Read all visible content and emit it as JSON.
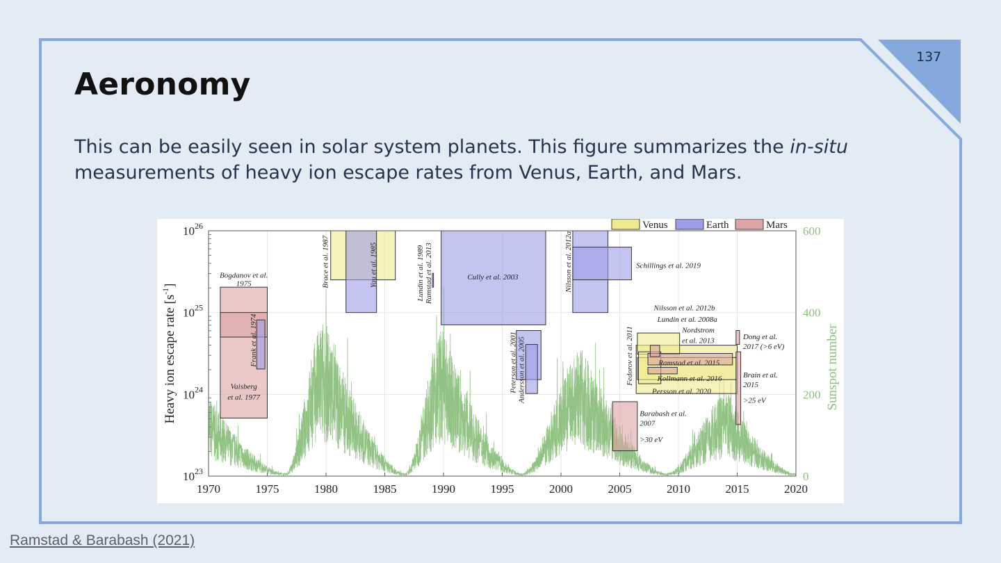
{
  "slide": {
    "page_number": "137",
    "title": "Aeronomy",
    "body_part1": "This can be easily seen in solar system planets. This figure summarizes the ",
    "body_italic": "in-situ",
    "body_part2": " measurements of heavy ion escape rates from Venus, Earth, and Mars.",
    "source_link": "Ramstad & Barabash (2021)",
    "colors": {
      "background": "#e3ebf4",
      "accent": "#85a9dc",
      "text": "#1f2a44"
    }
  },
  "chart_data": {
    "type": "area",
    "title": "",
    "xlabel": "",
    "ylabel": "Heavy ion escape rate [s",
    "ylabel_sup": "-1",
    "ylabel_end": "]",
    "y2label": "Sunspot number",
    "xlim": [
      1970,
      2020
    ],
    "ylim_log10": [
      23,
      26
    ],
    "y2lim": [
      0,
      600
    ],
    "xticks": [
      "1970",
      "1975",
      "1980",
      "1985",
      "1990",
      "1995",
      "2000",
      "2005",
      "2010",
      "2015",
      "2020"
    ],
    "yticks": [
      {
        "base": "10",
        "exp": "23"
      },
      {
        "base": "10",
        "exp": "24"
      },
      {
        "base": "10",
        "exp": "25"
      },
      {
        "base": "10",
        "exp": "26"
      }
    ],
    "y2ticks": [
      "0",
      "200",
      "400",
      "600"
    ],
    "grid": true,
    "legend_position": "top-right",
    "legend": [
      {
        "name": "Venus",
        "color": "#efe98f"
      },
      {
        "name": "Earth",
        "color": "#9d9de8"
      },
      {
        "name": "Mars",
        "color": "#dca4a4"
      }
    ],
    "sunspot_color": "#7fb870",
    "sunspot_cycles": [
      {
        "min": 1964.8,
        "max": 1968.9,
        "peak": 150
      },
      {
        "min": 1976.5,
        "max": 1979.9,
        "peak": 230
      },
      {
        "min": 1986.7,
        "max": 1989.9,
        "peak": 215
      },
      {
        "min": 1996.6,
        "max": 2001.9,
        "peak": 185
      },
      {
        "min": 2008.9,
        "max": 2014.3,
        "peak": 118
      },
      {
        "min": 2019.9,
        "max": 2024.5,
        "peak": 120
      }
    ],
    "measurements": [
      {
        "planet": "Mars",
        "x": [
          1971.0,
          1975.0
        ],
        "log10": [
          23.71,
          25.31
        ]
      },
      {
        "planet": "Mars",
        "x": [
          1971.0,
          1975.0
        ],
        "log10": [
          24.7,
          25.0
        ]
      },
      {
        "planet": "Earth",
        "x": [
          1974.1,
          1974.8
        ],
        "log10": [
          24.31,
          24.91
        ]
      },
      {
        "planet": "Venus",
        "x": [
          1980.4,
          1985.9
        ],
        "log10": [
          25.4,
          26.0
        ]
      },
      {
        "planet": "Earth",
        "x": [
          1981.7,
          1984.3
        ],
        "log10": [
          25.0,
          26.0
        ]
      },
      {
        "planet": "Earth",
        "x": [
          1989.05,
          1989.15
        ],
        "log10": [
          25.31,
          25.48
        ]
      },
      {
        "planet": "Earth",
        "x": [
          1989.8,
          1998.7
        ],
        "log10": [
          24.85,
          26.0
        ]
      },
      {
        "planet": "Earth",
        "x": [
          1996.2,
          1998.3
        ],
        "log10": [
          24.18,
          24.78
        ]
      },
      {
        "planet": "Earth",
        "x": [
          1997.0,
          1998.0
        ],
        "log10": [
          24.01,
          24.61
        ]
      },
      {
        "planet": "Earth",
        "x": [
          2001.0,
          2004.0
        ],
        "log10": [
          25.0,
          26.0
        ]
      },
      {
        "planet": "Earth",
        "x": [
          2001.0,
          2006.0
        ],
        "log10": [
          25.4,
          25.8
        ]
      },
      {
        "planet": "Mars",
        "x": [
          2004.4,
          2006.5
        ],
        "log10": [
          23.31,
          23.91
        ]
      },
      {
        "planet": "Venus",
        "x": [
          2006.4,
          2015.0
        ],
        "log10": [
          24.01,
          24.6
        ]
      },
      {
        "planet": "Venus",
        "x": [
          2006.5,
          2010.1
        ],
        "log10": [
          24.49,
          24.75
        ]
      },
      {
        "planet": "Venus",
        "x": [
          2006.5,
          2015.0
        ],
        "log10": [
          24.18,
          24.45
        ]
      },
      {
        "planet": "Venus",
        "x": [
          2006.6,
          2008.5
        ],
        "log10": [
          24.13,
          24.52
        ]
      },
      {
        "planet": "Mars",
        "x": [
          2007.4,
          2014.6
        ],
        "log10": [
          24.36,
          24.5
        ]
      },
      {
        "planet": "Mars",
        "x": [
          2007.4,
          2009.9
        ],
        "log10": [
          24.25,
          24.33
        ]
      },
      {
        "planet": "Mars",
        "x": [
          2007.6,
          2008.4
        ],
        "log10": [
          24.46,
          24.6
        ]
      },
      {
        "planet": "Mars",
        "x": [
          2014.9,
          2015.2
        ],
        "log10": [
          24.61,
          24.78
        ]
      },
      {
        "planet": "Mars",
        "x": [
          2014.9,
          2015.3
        ],
        "log10": [
          23.63,
          24.52
        ]
      }
    ],
    "annotations": [
      {
        "text": "Bogdanov et al.",
        "x": 1973.0,
        "y": 25.46,
        "anchor": "middle"
      },
      {
        "text": "1975",
        "x": 1973.0,
        "y": 25.36,
        "anchor": "middle"
      },
      {
        "text": "Vaisberg",
        "x": 1973.0,
        "y": 24.1,
        "anchor": "middle"
      },
      {
        "text": "et al. 1977",
        "x": 1973.0,
        "y": 23.97,
        "anchor": "middle"
      },
      {
        "text": "Frank et al. 1974",
        "x": 1973.8,
        "y": 24.66,
        "anchor": "middle",
        "rotate": true
      },
      {
        "text": "Brace et al. 1987",
        "x": 1979.9,
        "y": 25.62,
        "anchor": "middle",
        "rotate": true
      },
      {
        "text": "Yau et al. 1985",
        "x": 1984.0,
        "y": 25.58,
        "anchor": "middle",
        "rotate": true
      },
      {
        "text": "Lundin et al. 1989",
        "x": 1988.0,
        "y": 25.48,
        "anchor": "middle",
        "rotate": true
      },
      {
        "text": "Ramstad et al. 2013",
        "x": 1988.7,
        "y": 25.48,
        "anchor": "middle",
        "rotate": true
      },
      {
        "text": "Cully et al. 2003",
        "x": 1994.2,
        "y": 25.44,
        "anchor": "middle"
      },
      {
        "text": "Peterson et al. 2001",
        "x": 1995.9,
        "y": 24.39,
        "anchor": "middle",
        "rotate": true
      },
      {
        "text": "Andersson et al. 2005",
        "x": 1996.6,
        "y": 24.3,
        "anchor": "middle",
        "rotate": true
      },
      {
        "text": "Nilsson et al. 2012a",
        "x": 2000.6,
        "y": 25.62,
        "anchor": "middle",
        "rotate": true
      },
      {
        "text": "Schillings et al. 2019",
        "x": 2006.4,
        "y": 25.58,
        "anchor": "start"
      },
      {
        "text": "Nilsson et al. 2012b",
        "x": 2007.9,
        "y": 25.06,
        "anchor": "start"
      },
      {
        "text": "Lundin et al. 2008a",
        "x": 2008.2,
        "y": 24.92,
        "anchor": "start"
      },
      {
        "text": "Nordstrom",
        "x": 2010.3,
        "y": 24.79,
        "anchor": "start"
      },
      {
        "text": "et al. 2013",
        "x": 2010.3,
        "y": 24.66,
        "anchor": "start"
      },
      {
        "text": "Fedorov et al. 2011",
        "x": 2005.8,
        "y": 24.47,
        "anchor": "middle",
        "rotate": true
      },
      {
        "text": "Ramstad et al. 2015",
        "x": 2008.3,
        "y": 24.39,
        "anchor": "start"
      },
      {
        "text": "Kollmann et al. 2016",
        "x": 2008.2,
        "y": 24.2,
        "anchor": "start"
      },
      {
        "text": "Persson et al. 2020",
        "x": 2007.75,
        "y": 24.04,
        "anchor": "start"
      },
      {
        "text": "Dong et al.",
        "x": 2015.5,
        "y": 24.71,
        "anchor": "start"
      },
      {
        "text": "2017 (>6 eV)",
        "x": 2015.5,
        "y": 24.59,
        "anchor": "start"
      },
      {
        "text": "Brain et al.",
        "x": 2015.5,
        "y": 24.24,
        "anchor": "start"
      },
      {
        "text": "2015",
        "x": 2015.5,
        "y": 24.12,
        "anchor": "start"
      },
      {
        "text": ">25 eV",
        "x": 2015.5,
        "y": 23.93,
        "anchor": "start"
      },
      {
        "text": "Barabash et al.",
        "x": 2006.7,
        "y": 23.77,
        "anchor": "start"
      },
      {
        "text": "2007",
        "x": 2006.7,
        "y": 23.65,
        "anchor": "start"
      },
      {
        "text": ">30 eV",
        "x": 2006.7,
        "y": 23.45,
        "anchor": "start"
      }
    ]
  }
}
